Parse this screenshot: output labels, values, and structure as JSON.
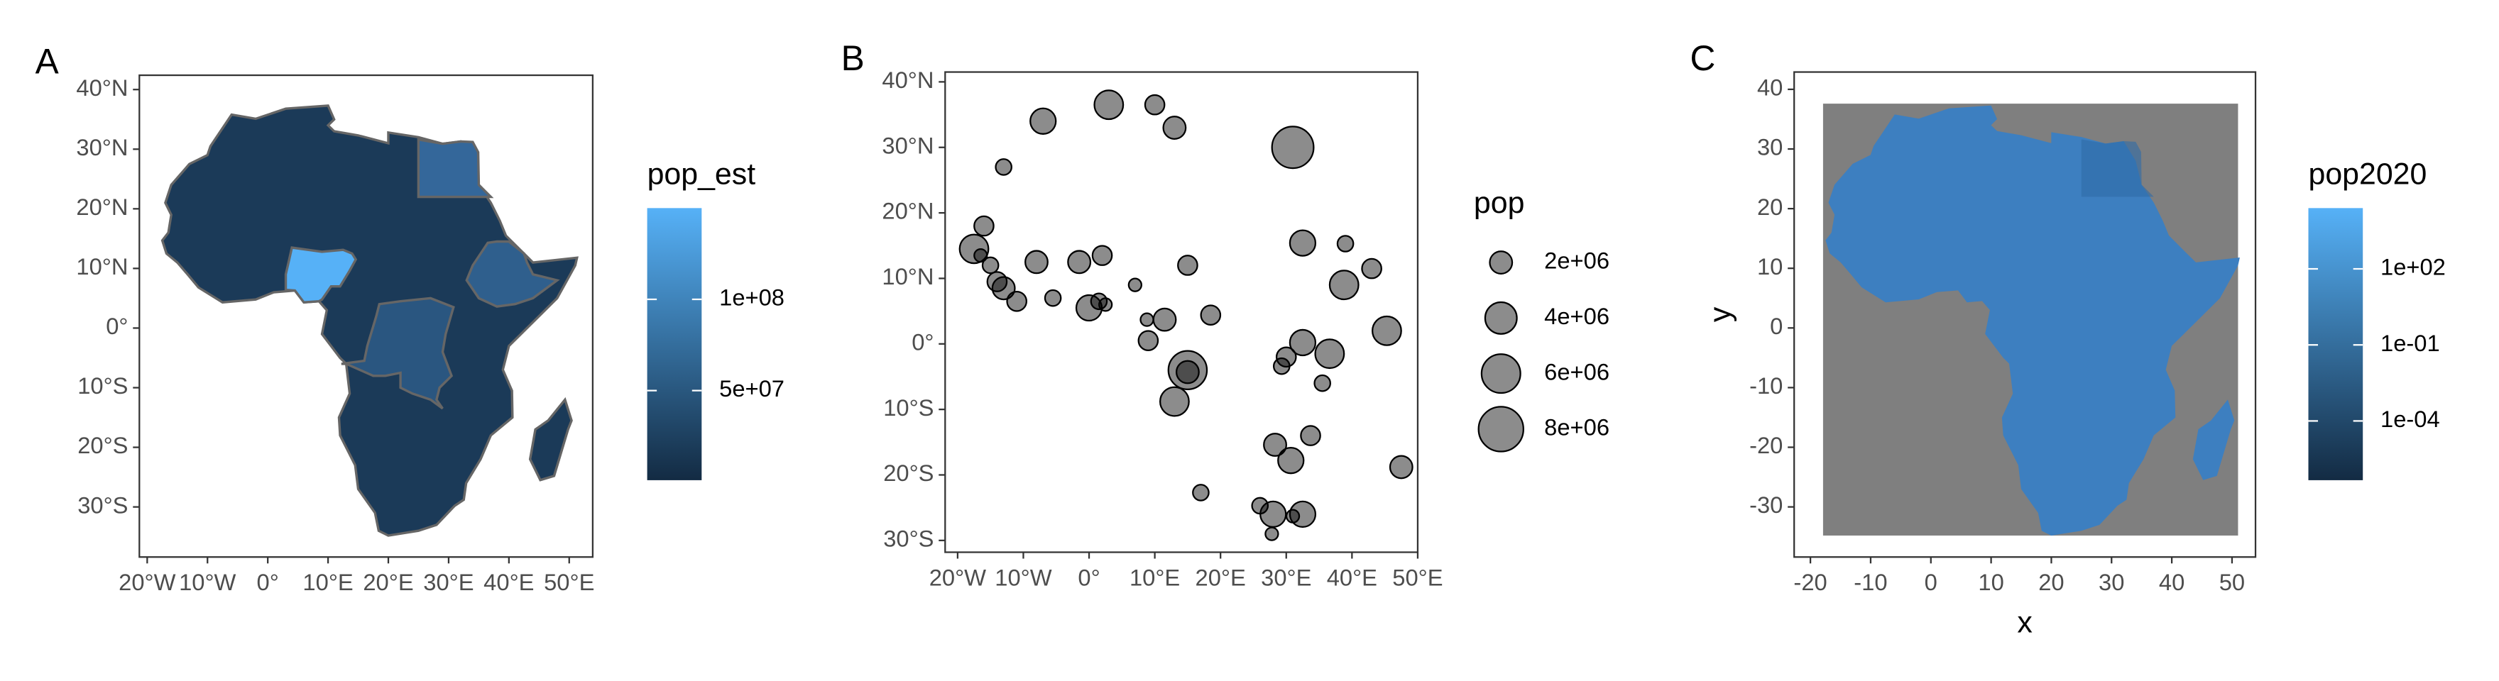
{
  "chart_data": [
    {
      "type": "choropleth",
      "tag": "A",
      "legend_title": "pop_est",
      "color_low": "#132b43",
      "color_high": "#56b1f7",
      "clim": [
        900000,
        150000000
      ],
      "legend_ticks": [
        {
          "value": 50000000,
          "label": "5e+07"
        },
        {
          "value": 100000000,
          "label": "1e+08"
        }
      ],
      "xlim": [
        -21.3,
        53.9
      ],
      "ylim": [
        -38.4,
        42.4
      ],
      "xticks": [
        {
          "value": -20,
          "label": "20°W"
        },
        {
          "value": -10,
          "label": "10°W"
        },
        {
          "value": 0,
          "label": "0°"
        },
        {
          "value": 10,
          "label": "10°E"
        },
        {
          "value": 20,
          "label": "20°E"
        },
        {
          "value": 30,
          "label": "30°E"
        },
        {
          "value": 40,
          "label": "40°E"
        },
        {
          "value": 50,
          "label": "50°E"
        }
      ],
      "yticks": [
        {
          "value": -30,
          "label": "30°S"
        },
        {
          "value": -20,
          "label": "20°S"
        },
        {
          "value": -10,
          "label": "10°S"
        },
        {
          "value": 0,
          "label": "0°"
        },
        {
          "value": 10,
          "label": "10°N"
        },
        {
          "value": 20,
          "label": "20°N"
        },
        {
          "value": 30,
          "label": "30°N"
        },
        {
          "value": 40,
          "label": "40°N"
        }
      ]
    },
    {
      "type": "bubble",
      "tag": "B",
      "legend_title": "pop",
      "color": "#000000",
      "xlim": [
        -21.9,
        50
      ],
      "ylim": [
        -31.8,
        41.5
      ],
      "xticks": [
        {
          "value": -20,
          "label": "20°W"
        },
        {
          "value": -10,
          "label": "10°W"
        },
        {
          "value": 0,
          "label": "0°"
        },
        {
          "value": 10,
          "label": "10°E"
        },
        {
          "value": 20,
          "label": "20°E"
        },
        {
          "value": 30,
          "label": "30°E"
        },
        {
          "value": 40,
          "label": "40°E"
        },
        {
          "value": 50,
          "label": "50°E"
        }
      ],
      "yticks": [
        {
          "value": -30,
          "label": "30°S"
        },
        {
          "value": -20,
          "label": "20°S"
        },
        {
          "value": -10,
          "label": "10°S"
        },
        {
          "value": 0,
          "label": "0°"
        },
        {
          "value": 10,
          "label": "10°N"
        },
        {
          "value": 20,
          "label": "20°N"
        },
        {
          "value": 30,
          "label": "30°N"
        },
        {
          "value": 40,
          "label": "40°N"
        }
      ],
      "size_breaks": [
        {
          "value": 2000000,
          "label": "2e+06"
        },
        {
          "value": 4000000,
          "label": "4e+06"
        },
        {
          "value": 6000000,
          "label": "6e+06"
        },
        {
          "value": 8000000,
          "label": "8e+06"
        }
      ],
      "x": [
        -7,
        3,
        10,
        13,
        31,
        -13,
        -16,
        -17.5,
        -16.5,
        -15,
        -14,
        -13,
        -11,
        -8,
        -5.5,
        -1.5,
        2,
        0,
        1.5,
        2.5,
        7,
        8.8,
        9,
        11.5,
        15,
        18.5,
        15,
        15,
        13,
        17,
        32.5,
        39,
        43,
        38.8,
        32.5,
        30,
        29.3,
        36.6,
        35.5,
        45.3,
        33.7,
        28.3,
        30.7,
        47.5,
        26,
        28,
        32.5,
        31,
        27.8
      ],
      "values": [
        34,
        36.5,
        36.5,
        33,
        30,
        27,
        18,
        14.5,
        13.5,
        12,
        9.5,
        8.5,
        6.5,
        12.5,
        7,
        12.5,
        13.5,
        5.5,
        6.5,
        6,
        9,
        3.7,
        0.5,
        3.7,
        12,
        4.4,
        -4,
        -4.3,
        -8.8,
        -22.7,
        15.4,
        15.3,
        11.5,
        9,
        0.2,
        -2,
        -3.4,
        -1.5,
        -6,
        2,
        -14,
        -15.4,
        -17.8,
        -18.8,
        -24.7,
        -26,
        -26,
        -26.3,
        -29
      ],
      "sizes": [
        2600000,
        3300000,
        1500000,
        2000000,
        6900000,
        1000000,
        1500000,
        3300000,
        650000,
        1000000,
        1500000,
        2000000,
        1500000,
        2000000,
        1000000,
        2000000,
        1500000,
        2600000,
        1000000,
        650000,
        650000,
        650000,
        1500000,
        2000000,
        1500000,
        1500000,
        5900000,
        2000000,
        3300000,
        1000000,
        2600000,
        1000000,
        1500000,
        3300000,
        2600000,
        1500000,
        1000000,
        3300000,
        1000000,
        3300000,
        1500000,
        2000000,
        2600000,
        2000000,
        1000000,
        2600000,
        2600000,
        650000,
        650000
      ]
    },
    {
      "type": "raster",
      "tag": "C",
      "legend_title": "pop2020",
      "x_label": "x",
      "y_label": "y",
      "color_low": "#132b43",
      "color_high": "#56b1f7",
      "log_scale": true,
      "clim": [
        4.6e-07,
        25000
      ],
      "legend_ticks": [
        {
          "value": 0.0001,
          "label": "1e-04"
        },
        {
          "value": 0.1,
          "label": "1e-01"
        },
        {
          "value": 100,
          "label": "1e+02"
        }
      ],
      "xlim": [
        -22.7,
        53.9
      ],
      "ylim": [
        -38.4,
        42.9
      ],
      "xticks": [
        -20,
        {
          "value": -10,
          "label": "-10"
        },
        0,
        10,
        20,
        30,
        40,
        50
      ],
      "yticks": [
        {
          "value": -30,
          "label": "-30"
        },
        {
          "value": -20,
          "label": "-20"
        },
        {
          "value": -10,
          "label": "-10"
        },
        0,
        10,
        20,
        30,
        40
      ]
    }
  ]
}
